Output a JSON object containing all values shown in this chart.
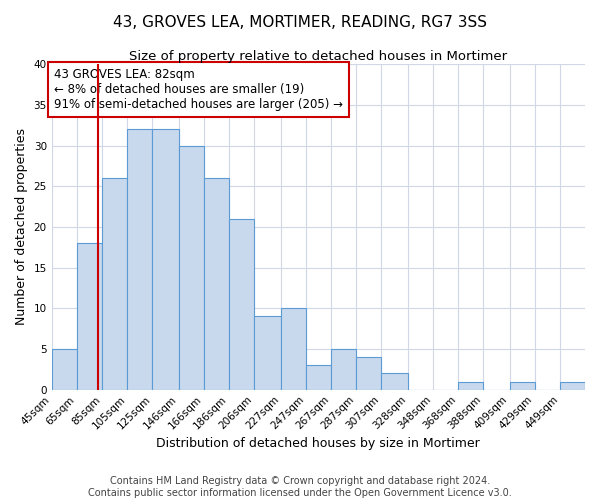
{
  "title": "43, GROVES LEA, MORTIMER, READING, RG7 3SS",
  "subtitle": "Size of property relative to detached houses in Mortimer",
  "xlabel": "Distribution of detached houses by size in Mortimer",
  "ylabel": "Number of detached properties",
  "bin_labels": [
    "45sqm",
    "65sqm",
    "85sqm",
    "105sqm",
    "125sqm",
    "146sqm",
    "166sqm",
    "186sqm",
    "206sqm",
    "227sqm",
    "247sqm",
    "267sqm",
    "287sqm",
    "307sqm",
    "328sqm",
    "348sqm",
    "368sqm",
    "388sqm",
    "409sqm",
    "429sqm",
    "449sqm"
  ],
  "bin_edges": [
    45,
    65,
    85,
    105,
    125,
    146,
    166,
    186,
    206,
    227,
    247,
    267,
    287,
    307,
    328,
    348,
    368,
    388,
    409,
    429,
    449
  ],
  "counts": [
    5,
    18,
    26,
    32,
    32,
    30,
    26,
    21,
    9,
    10,
    3,
    5,
    4,
    2,
    0,
    0,
    1,
    0,
    1,
    0,
    1
  ],
  "property_value": 82,
  "bar_facecolor": "#c8d9ed",
  "bar_edgecolor": "#5b9bd5",
  "vline_color": "#cc0000",
  "annotation_box_edgecolor": "#cc0000",
  "annotation_text": "43 GROVES LEA: 82sqm\n← 8% of detached houses are smaller (19)\n91% of semi-detached houses are larger (205) →",
  "ylim": [
    0,
    40
  ],
  "yticks": [
    0,
    5,
    10,
    15,
    20,
    25,
    30,
    35,
    40
  ],
  "footer_line1": "Contains HM Land Registry data © Crown copyright and database right 2024.",
  "footer_line2": "Contains public sector information licensed under the Open Government Licence v3.0.",
  "background_color": "#ffffff",
  "grid_color": "#d0d8e8",
  "title_fontsize": 11,
  "subtitle_fontsize": 9.5,
  "axis_label_fontsize": 9,
  "tick_fontsize": 7.5,
  "annotation_fontsize": 8.5,
  "footer_fontsize": 7
}
